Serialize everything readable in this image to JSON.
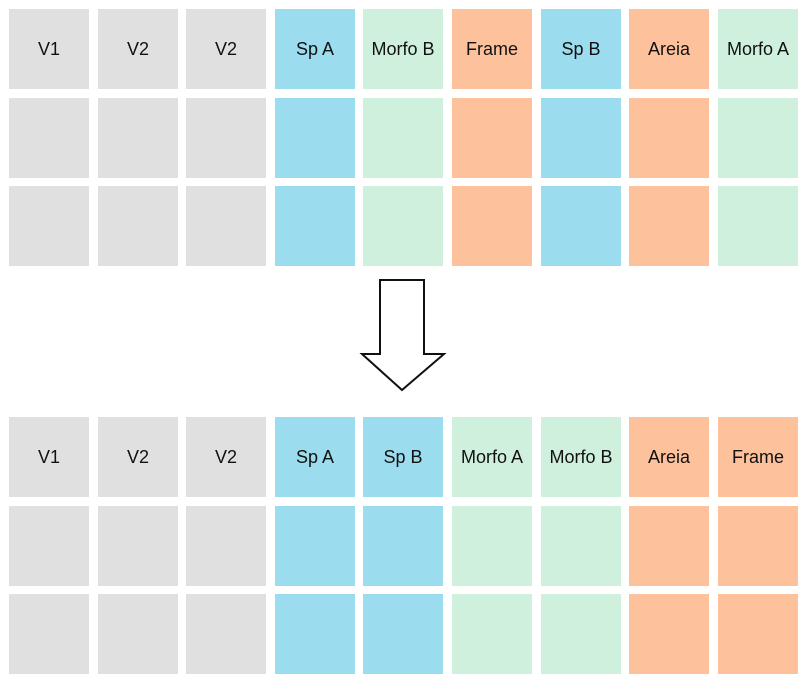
{
  "colors": {
    "gray": "#e0e0e0",
    "blue": "#9bdcee",
    "green": "#cff0dd",
    "orange": "#fdc19b"
  },
  "before": {
    "columns": [
      {
        "label": "V1",
        "color": "gray"
      },
      {
        "label": "V2",
        "color": "gray"
      },
      {
        "label": "V2",
        "color": "gray"
      },
      {
        "label": "Sp A",
        "color": "blue"
      },
      {
        "label": "Morfo B",
        "color": "green"
      },
      {
        "label": "Frame",
        "color": "orange"
      },
      {
        "label": "Sp B",
        "color": "blue"
      },
      {
        "label": "Areia",
        "color": "orange"
      },
      {
        "label": "Morfo A",
        "color": "green"
      }
    ]
  },
  "after": {
    "columns": [
      {
        "label": "V1",
        "color": "gray"
      },
      {
        "label": "V2",
        "color": "gray"
      },
      {
        "label": "V2",
        "color": "gray"
      },
      {
        "label": "Sp A",
        "color": "blue"
      },
      {
        "label": "Sp B",
        "color": "blue"
      },
      {
        "label": "Morfo A",
        "color": "green"
      },
      {
        "label": "Morfo B",
        "color": "green"
      },
      {
        "label": "Areia",
        "color": "orange"
      },
      {
        "label": "Frame",
        "color": "orange"
      }
    ]
  },
  "rows_per_grid": 3,
  "arrow_icon": "down-arrow-icon"
}
